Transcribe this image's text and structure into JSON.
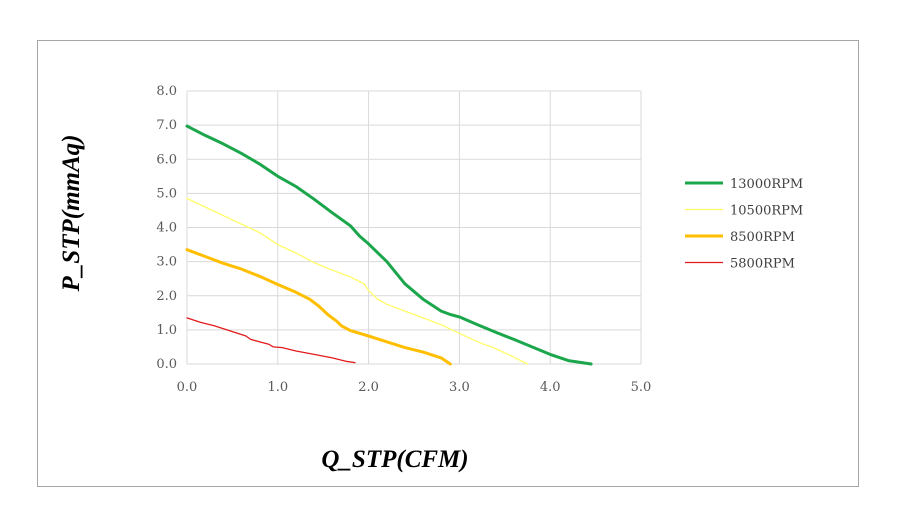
{
  "chart_data": {
    "type": "line",
    "xlabel": "Q_STP(CFM)",
    "ylabel": "P_STP(mmAq)",
    "xlim": [
      0,
      5
    ],
    "ylim": [
      0,
      8
    ],
    "xticks": [
      "0.0",
      "1.0",
      "2.0",
      "3.0",
      "4.0",
      "5.0"
    ],
    "yticks": [
      "0.0",
      "1.0",
      "2.0",
      "3.0",
      "4.0",
      "5.0",
      "6.0",
      "7.0",
      "8.0"
    ],
    "grid": true,
    "legend_position": "right",
    "series": [
      {
        "name": "13000RPM",
        "color": "#1ca64c",
        "width": "thick",
        "points": [
          [
            0.0,
            6.97
          ],
          [
            0.2,
            6.7
          ],
          [
            0.4,
            6.45
          ],
          [
            0.6,
            6.17
          ],
          [
            0.8,
            5.86
          ],
          [
            1.0,
            5.5
          ],
          [
            1.2,
            5.2
          ],
          [
            1.4,
            4.83
          ],
          [
            1.6,
            4.43
          ],
          [
            1.8,
            4.05
          ],
          [
            1.9,
            3.75
          ],
          [
            2.0,
            3.52
          ],
          [
            2.2,
            3.0
          ],
          [
            2.4,
            2.35
          ],
          [
            2.6,
            1.9
          ],
          [
            2.8,
            1.55
          ],
          [
            2.9,
            1.45
          ],
          [
            3.0,
            1.38
          ],
          [
            3.2,
            1.15
          ],
          [
            3.4,
            0.93
          ],
          [
            3.6,
            0.72
          ],
          [
            3.8,
            0.5
          ],
          [
            4.0,
            0.28
          ],
          [
            4.2,
            0.1
          ],
          [
            4.45,
            0.0
          ]
        ]
      },
      {
        "name": "10500RPM",
        "color": "#ffff66",
        "width": "thin",
        "points": [
          [
            0.0,
            4.85
          ],
          [
            0.2,
            4.6
          ],
          [
            0.4,
            4.35
          ],
          [
            0.6,
            4.1
          ],
          [
            0.8,
            3.85
          ],
          [
            1.0,
            3.5
          ],
          [
            1.2,
            3.25
          ],
          [
            1.4,
            2.97
          ],
          [
            1.6,
            2.75
          ],
          [
            1.8,
            2.55
          ],
          [
            1.95,
            2.35
          ],
          [
            2.0,
            2.15
          ],
          [
            2.1,
            1.9
          ],
          [
            2.2,
            1.75
          ],
          [
            2.4,
            1.55
          ],
          [
            2.6,
            1.35
          ],
          [
            2.8,
            1.15
          ],
          [
            3.0,
            0.9
          ],
          [
            3.2,
            0.65
          ],
          [
            3.4,
            0.45
          ],
          [
            3.6,
            0.2
          ],
          [
            3.75,
            0.0
          ]
        ]
      },
      {
        "name": "8500RPM",
        "color": "#ffbf00",
        "width": "thick",
        "points": [
          [
            0.0,
            3.35
          ],
          [
            0.2,
            3.15
          ],
          [
            0.4,
            2.95
          ],
          [
            0.6,
            2.78
          ],
          [
            0.8,
            2.57
          ],
          [
            1.0,
            2.33
          ],
          [
            1.2,
            2.1
          ],
          [
            1.35,
            1.9
          ],
          [
            1.45,
            1.7
          ],
          [
            1.55,
            1.45
          ],
          [
            1.65,
            1.25
          ],
          [
            1.7,
            1.12
          ],
          [
            1.8,
            0.98
          ],
          [
            2.0,
            0.82
          ],
          [
            2.2,
            0.65
          ],
          [
            2.4,
            0.48
          ],
          [
            2.6,
            0.35
          ],
          [
            2.8,
            0.18
          ],
          [
            2.9,
            0.0
          ]
        ]
      },
      {
        "name": "5800RPM",
        "color": "#e31a1c",
        "width": "thin",
        "points": [
          [
            0.0,
            1.35
          ],
          [
            0.15,
            1.22
          ],
          [
            0.3,
            1.12
          ],
          [
            0.5,
            0.95
          ],
          [
            0.65,
            0.82
          ],
          [
            0.7,
            0.72
          ],
          [
            0.9,
            0.58
          ],
          [
            0.95,
            0.5
          ],
          [
            1.05,
            0.48
          ],
          [
            1.2,
            0.38
          ],
          [
            1.4,
            0.28
          ],
          [
            1.6,
            0.18
          ],
          [
            1.75,
            0.08
          ],
          [
            1.85,
            0.04
          ]
        ]
      }
    ]
  }
}
